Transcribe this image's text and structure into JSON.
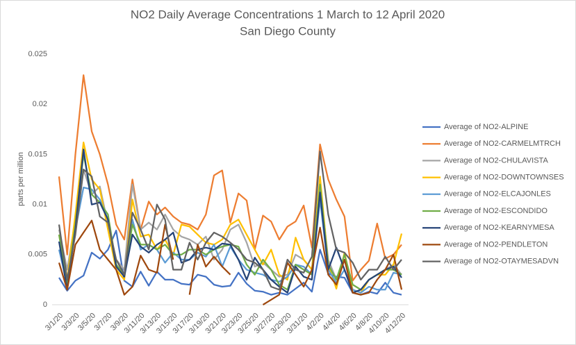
{
  "chart_data": {
    "type": "line",
    "title": "NO2 Daily Average Concentrations  1 March to 12 April 2020",
    "subtitle": "San Diego County",
    "y_label": "parts per million",
    "categories": [
      "3/1/20",
      null,
      "3/3/20",
      null,
      "3/5/20",
      null,
      "3/7/20",
      null,
      "3/9/20",
      null,
      "3/11/20",
      null,
      "3/13/20",
      null,
      "3/15/20",
      null,
      "3/17/20",
      null,
      "3/19/20",
      null,
      "3/21/20",
      null,
      "3/23/20",
      null,
      "3/25/20",
      null,
      "3/27/20",
      null,
      "3/29/20",
      null,
      "3/31/20",
      null,
      "4/2/20",
      null,
      "4/4/20",
      null,
      "4/6/20",
      null,
      "4/8/20",
      null,
      "4/10/20",
      null,
      "4/12/20"
    ],
    "ylim": [
      0,
      0.025
    ],
    "yticks": [
      0,
      0.005,
      0.01,
      0.015,
      0.02,
      0.025
    ],
    "grid": false,
    "legend": "right",
    "series": [
      {
        "name": "Average of NO2-ALPINE",
        "color": "#4472c4",
        "values": [
          0.0027,
          0.0014,
          0.0024,
          0.0029,
          0.0052,
          0.0046,
          0.0055,
          0.0074,
          0.0024,
          0.0018,
          0.0033,
          0.0019,
          0.0033,
          0.0025,
          0.0025,
          0.0021,
          0.002,
          0.003,
          0.0028,
          0.002,
          0.0018,
          0.0019,
          0.0032,
          0.0021,
          0.0014,
          0.0013,
          0.001,
          0.0012,
          0.001,
          0.0016,
          0.0022,
          0.0013,
          0.0055,
          0.0031,
          0.0028,
          0.0027,
          0.0012,
          0.001,
          0.0013,
          0.0011,
          0.0022,
          0.0012,
          0.001
        ]
      },
      {
        "name": "Average of NO2-CARMELMTRCH",
        "color": "#ed7d31",
        "values": [
          0.0128,
          0.005,
          0.015,
          0.0229,
          0.0173,
          0.015,
          0.012,
          0.008,
          0.0065,
          0.0125,
          0.0075,
          0.0103,
          0.009,
          0.0097,
          0.0088,
          0.0082,
          0.008,
          0.0075,
          0.009,
          0.0129,
          0.0134,
          0.0082,
          0.0111,
          0.0104,
          0.0055,
          0.0089,
          0.0083,
          0.0065,
          0.0078,
          0.0083,
          0.0099,
          0.0057,
          0.016,
          0.0125,
          0.0105,
          0.0088,
          0.0024,
          0.0035,
          0.0044,
          0.0081,
          0.0046,
          0.005,
          0.006
        ]
      },
      {
        "name": "Average of NO2-CHULAVISTA",
        "color": "#a5a5a5",
        "values": [
          0.0075,
          0.0035,
          0.0085,
          0.0135,
          0.011,
          0.0118,
          0.008,
          0.0045,
          0.0035,
          0.012,
          0.0075,
          0.0082,
          0.0075,
          0.009,
          0.0075,
          0.0068,
          0.0065,
          0.006,
          0.0068,
          0.0045,
          0.0055,
          0.0075,
          0.008,
          0.0062,
          0.0038,
          0.0042,
          0.0035,
          0.0028,
          0.003,
          0.005,
          0.0045,
          0.0035,
          0.012,
          0.0045,
          0.0025,
          0.0045,
          0.002,
          0.0015,
          0.0025,
          0.003,
          0.0035,
          0.004,
          0.003
        ]
      },
      {
        "name": "Average of NO2-DOWNTOWNSES",
        "color": "#ffc000",
        "values": [
          0.007,
          0.0025,
          0.009,
          0.0162,
          0.0125,
          0.0115,
          0.0075,
          0.0035,
          0.0025,
          0.0105,
          0.0068,
          0.007,
          0.0055,
          0.0065,
          0.005,
          0.008,
          0.0078,
          0.007,
          0.0062,
          0.006,
          0.0065,
          0.008,
          0.0085,
          0.007,
          0.0055,
          0.004,
          0.0055,
          0.003,
          0.0025,
          0.0067,
          0.0045,
          0.0035,
          0.0128,
          0.004,
          0.0016,
          0.0052,
          0.0015,
          0.0012,
          0.0025,
          0.003,
          0.003,
          0.004,
          0.0071
        ]
      },
      {
        "name": "Average of NO2-ELCAJONLES",
        "color": "#5b9bd5",
        "values": [
          0.0055,
          0.002,
          0.0075,
          0.0117,
          0.0115,
          0.0105,
          0.0085,
          0.004,
          0.003,
          0.0085,
          0.0055,
          0.006,
          0.0055,
          0.0042,
          0.0052,
          0.0045,
          0.0045,
          0.0052,
          0.0048,
          0.006,
          0.0038,
          0.0058,
          0.0045,
          0.0035,
          0.0032,
          0.003,
          0.0025,
          0.0023,
          0.0028,
          0.004,
          0.0038,
          0.003,
          0.0105,
          0.0035,
          0.0022,
          0.0035,
          0.0015,
          0.0012,
          0.0018,
          0.0015,
          0.0015,
          0.0032,
          0.003
        ]
      },
      {
        "name": "Average of NO2-ESCONDIDO",
        "color": "#70ad47",
        "values": [
          0.007,
          0.002,
          0.008,
          0.015,
          0.011,
          0.0102,
          0.009,
          0.004,
          0.003,
          0.008,
          0.006,
          0.006,
          0.0055,
          0.006,
          0.005,
          0.005,
          0.0055,
          0.0055,
          0.005,
          0.0055,
          0.0058,
          0.006,
          0.0058,
          0.004,
          0.003,
          0.0045,
          0.0035,
          0.002,
          0.0015,
          0.004,
          0.0035,
          0.003,
          0.012,
          0.004,
          0.0025,
          0.005,
          0.002,
          0.0015,
          0.0025,
          0.003,
          0.0035,
          0.0035,
          0.003
        ]
      },
      {
        "name": "Average of NO2-KEARNYMESA",
        "color": "#264478",
        "values": [
          0.0063,
          0.0015,
          0.0075,
          0.0155,
          0.01,
          0.0102,
          0.0085,
          0.0038,
          0.0028,
          0.007,
          0.0058,
          0.0052,
          0.006,
          0.0065,
          0.0072,
          0.0042,
          0.0045,
          0.0055,
          0.0057,
          0.0055,
          0.0061,
          0.006,
          0.0045,
          0.0025,
          0.0047,
          0.0035,
          0.0025,
          0.0018,
          0.0012,
          0.0038,
          0.0028,
          0.0025,
          0.0112,
          0.0035,
          0.0057,
          0.0035,
          0.0012,
          0.0015,
          0.0025,
          0.003,
          0.0035,
          0.0038,
          0.0027
        ]
      },
      {
        "name": "Average of NO2-PENDLETON",
        "color": "#9e480e",
        "values": [
          0.0042,
          0.0015,
          0.006,
          0.0072,
          0.0084,
          0.0055,
          0.0045,
          0.0035,
          0.001,
          0.0018,
          0.0049,
          0.0035,
          0.0032,
          0.008,
          0.0045,
          null,
          0.001,
          0.006,
          0.0038,
          0.0048,
          0.0038,
          0.003,
          null,
          null,
          null,
          0,
          0.0005,
          0.001,
          0.0042,
          0.003,
          0.0018,
          0.0035,
          0.0077,
          0.003,
          0.002,
          0.0045,
          0.0012,
          0.001,
          0.0012,
          0.0025,
          0.0035,
          0.005,
          0.0015
        ]
      },
      {
        "name": "Average of NO2-OTAYMESADVN",
        "color": "#636363",
        "values": [
          0.008,
          0.0025,
          0.007,
          0.0135,
          0.0128,
          0.0088,
          0.0082,
          0.0045,
          0.003,
          0.0092,
          0.0075,
          0.0055,
          0.01,
          0.0085,
          0.0035,
          0.0035,
          0.0062,
          0.0045,
          0.0062,
          0.0072,
          0.0068,
          0.0062,
          0.0055,
          0.0045,
          0.0042,
          0.0035,
          0.0018,
          0.0015,
          0.0045,
          0.0035,
          0.0032,
          0.0048,
          0.0153,
          0.009,
          0.0055,
          0.0052,
          0.0042,
          0.0025,
          0.0035,
          0.0035,
          0.0048,
          0.0035,
          0.0045
        ]
      }
    ]
  }
}
